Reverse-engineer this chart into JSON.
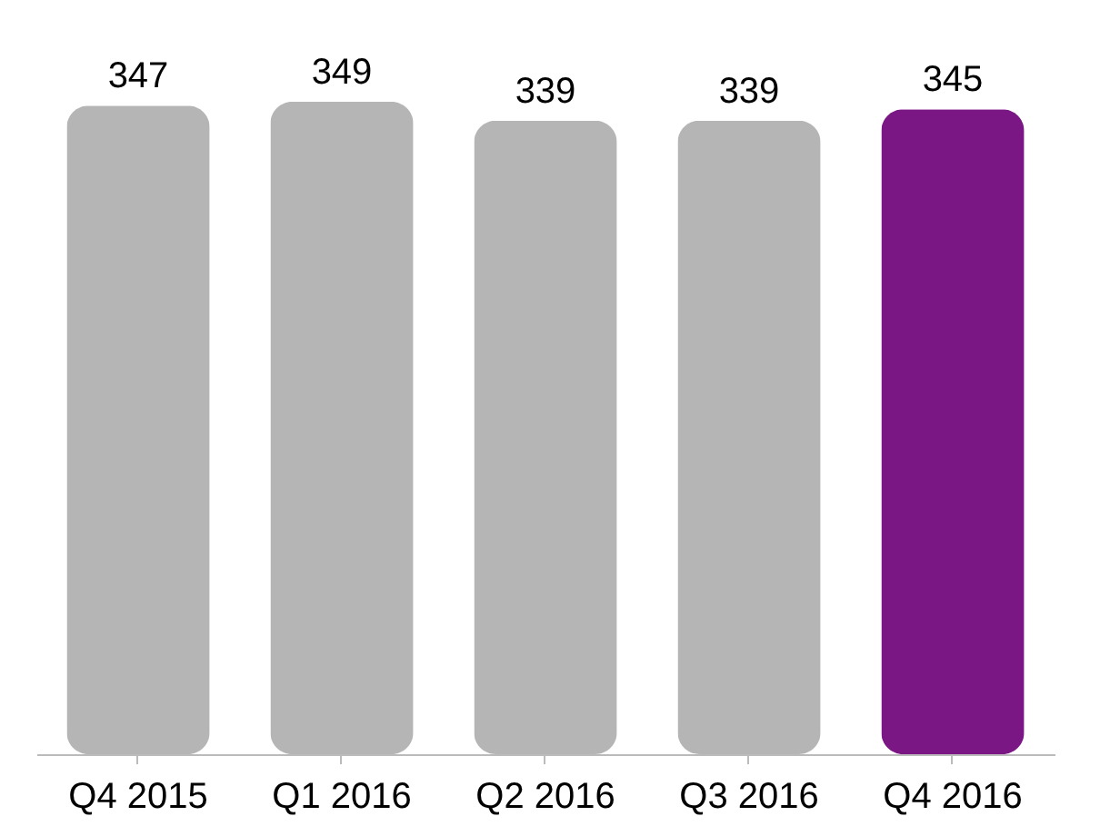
{
  "chart_data": {
    "type": "bar",
    "categories": [
      "Q4 2015",
      "Q1 2016",
      "Q2 2016",
      "Q3 2016",
      "Q4 2016"
    ],
    "values": [
      347,
      349,
      339,
      339,
      345
    ],
    "colors": [
      "#b5b5b5",
      "#b5b5b5",
      "#b5b5b5",
      "#b5b5b5",
      "#7b1785"
    ],
    "data_labels": true
  }
}
